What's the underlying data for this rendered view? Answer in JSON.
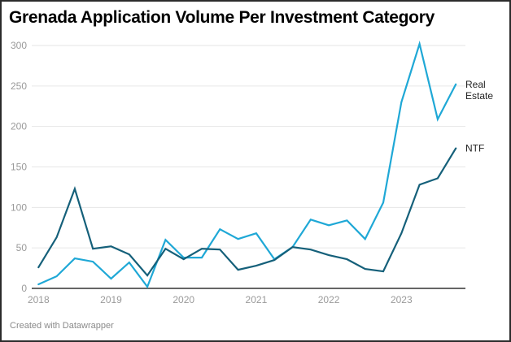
{
  "header": {
    "title": "Grenada Application Volume Per Investment Category"
  },
  "footer": {
    "credit": "Created with Datawrapper"
  },
  "colors": {
    "ntf": "#15607a",
    "real_estate": "#1fa8d6",
    "grid": "#e6e6e6",
    "axis": "#333333"
  },
  "chart_data": {
    "type": "line",
    "title": "Grenada Application Volume Per Investment Category",
    "xlabel": "",
    "ylabel": "",
    "ylim": [
      0,
      300
    ],
    "yticks": [
      0,
      50,
      100,
      150,
      200,
      250,
      300
    ],
    "xtick_labels": [
      "2018",
      "2019",
      "2020",
      "2021",
      "2022",
      "2023"
    ],
    "grid": true,
    "legend_position": "inline-right",
    "x": [
      "2018 Q1",
      "2018 Q2",
      "2018 Q3",
      "2018 Q4",
      "2019 Q1",
      "2019 Q2",
      "2019 Q3",
      "2019 Q4",
      "2020 Q1",
      "2020 Q2",
      "2020 Q3",
      "2020 Q4",
      "2021 Q1",
      "2021 Q2",
      "2021 Q3",
      "2021 Q4",
      "2022 Q1",
      "2022 Q2",
      "2022 Q3",
      "2022 Q4",
      "2023 Q1",
      "2023 Q2",
      "2023 Q3",
      "2023 Q4"
    ],
    "series": [
      {
        "name": "Real Estate",
        "label_lines": [
          "Real",
          "Estate"
        ],
        "color": "#1fa8d6",
        "values": [
          5,
          15,
          37,
          33,
          12,
          32,
          2,
          60,
          38,
          38,
          73,
          61,
          68,
          36,
          51,
          85,
          78,
          84,
          61,
          106,
          230,
          302,
          209,
          252
        ]
      },
      {
        "name": "NTF",
        "label_lines": [
          "NTF"
        ],
        "color": "#15607a",
        "values": [
          26,
          63,
          123,
          49,
          52,
          42,
          16,
          49,
          36,
          49,
          48,
          23,
          28,
          35,
          51,
          48,
          41,
          36,
          24,
          21,
          68,
          128,
          136,
          173
        ]
      }
    ]
  }
}
